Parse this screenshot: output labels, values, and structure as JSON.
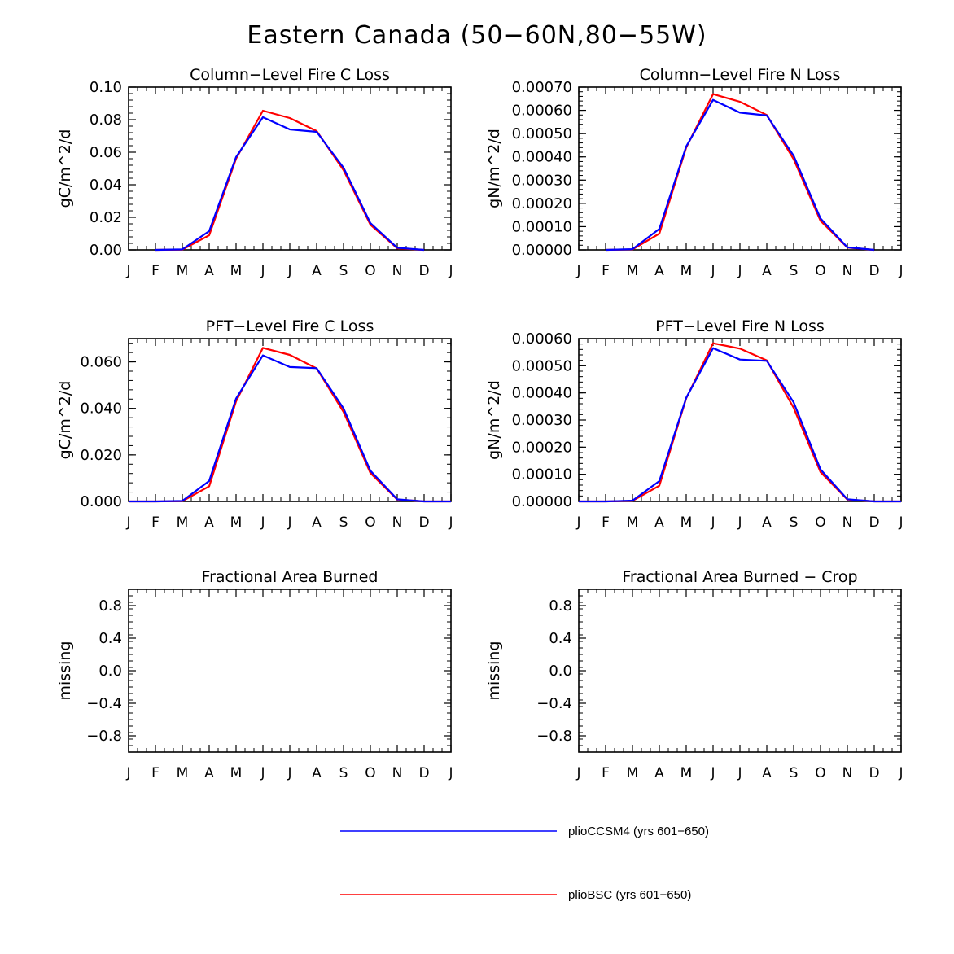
{
  "figure_title": "Eastern Canada (50−60N,80−55W)",
  "colors": {
    "series_1": "#0000ff",
    "series_2": "#ff0000",
    "axis": "#000000"
  },
  "legend": [
    {
      "label": "plioCCSM4 (yrs 601−650)",
      "color": "#0000ff"
    },
    {
      "label": "plioBSC (yrs 601−650)",
      "color": "#ff0000"
    }
  ],
  "chart_data": [
    {
      "type": "line",
      "title": "Column−Level Fire C Loss",
      "ylabel": "gC/m^2/d",
      "categories": [
        "J",
        "F",
        "M",
        "A",
        "M",
        "J",
        "J",
        "A",
        "S",
        "O",
        "N",
        "D",
        "J"
      ],
      "ylim": [
        0,
        0.1
      ],
      "yticks": [
        "0.00",
        "0.02",
        "0.04",
        "0.06",
        "0.08",
        "0.10"
      ],
      "series": [
        {
          "name": "plioBSC (yrs 601−650)",
          "color": "#ff0000",
          "values": [
            null,
            0.0,
            0.0002,
            0.009,
            0.056,
            0.0855,
            0.081,
            0.073,
            0.049,
            0.0155,
            0.001,
            0.0,
            null
          ]
        },
        {
          "name": "plioCCSM4 (yrs 601−650)",
          "color": "#0000ff",
          "values": [
            null,
            0.0,
            0.0003,
            0.0115,
            0.057,
            0.0815,
            0.074,
            0.0725,
            0.0505,
            0.0165,
            0.0013,
            0.0,
            null
          ]
        }
      ]
    },
    {
      "type": "line",
      "title": "Column−Level Fire N Loss",
      "ylabel": "gN/m^2/d",
      "categories": [
        "J",
        "F",
        "M",
        "A",
        "M",
        "J",
        "J",
        "A",
        "S",
        "O",
        "N",
        "D",
        "J"
      ],
      "ylim": [
        0,
        0.0007
      ],
      "yticks": [
        "0.00000",
        "0.00010",
        "0.00020",
        "0.00030",
        "0.00040",
        "0.00050",
        "0.00060",
        "0.00070"
      ],
      "series": [
        {
          "name": "plioBSC (yrs 601−650)",
          "color": "#ff0000",
          "values": [
            null,
            0.0,
            2e-06,
            7e-05,
            0.00044,
            0.00067,
            0.000637,
            0.00058,
            0.00039,
            0.000125,
            1e-05,
            0.0,
            null
          ]
        },
        {
          "name": "plioCCSM4 (yrs 601−650)",
          "color": "#0000ff",
          "values": [
            null,
            0.0,
            3e-06,
            9e-05,
            0.000445,
            0.000645,
            0.00059,
            0.000578,
            0.000405,
            0.000135,
            1.1e-05,
            0.0,
            null
          ]
        }
      ]
    },
    {
      "type": "line",
      "title": "PFT−Level Fire C Loss",
      "ylabel": "gC/m^2/d",
      "categories": [
        "J",
        "F",
        "M",
        "A",
        "M",
        "J",
        "J",
        "A",
        "S",
        "O",
        "N",
        "D",
        "J"
      ],
      "ylim": [
        0,
        0.07
      ],
      "yticks": [
        "0.000",
        "0.020",
        "0.040",
        "0.060"
      ],
      "ytick_values": [
        0,
        0.02,
        0.04,
        0.06
      ],
      "series": [
        {
          "name": "plioBSC (yrs 601−650)",
          "color": "#ff0000",
          "values": [
            0.0,
            0.0,
            0.0001,
            0.0065,
            0.043,
            0.066,
            0.063,
            0.0572,
            0.0385,
            0.0122,
            0.0008,
            0.0,
            0.0
          ]
        },
        {
          "name": "plioCCSM4 (yrs 601−650)",
          "color": "#0000ff",
          "values": [
            0.0,
            0.0,
            0.0002,
            0.0088,
            0.0442,
            0.0628,
            0.0578,
            0.0573,
            0.04,
            0.0132,
            0.0009,
            0.0,
            0.0
          ]
        }
      ]
    },
    {
      "type": "line",
      "title": "PFT−Level Fire N Loss",
      "ylabel": "gN/m^2/d",
      "categories": [
        "J",
        "F",
        "M",
        "A",
        "M",
        "J",
        "J",
        "A",
        "S",
        "O",
        "N",
        "D",
        "J"
      ],
      "ylim": [
        0,
        0.0006
      ],
      "yticks": [
        "0.00000",
        "0.00010",
        "0.00020",
        "0.00030",
        "0.00040",
        "0.00050",
        "0.00060"
      ],
      "series": [
        {
          "name": "plioBSC (yrs 601−650)",
          "color": "#ff0000",
          "values": [
            0.0,
            0.0,
            2e-06,
            5.8e-05,
            0.00038,
            0.000583,
            0.000563,
            0.00052,
            0.000345,
            0.000108,
            7e-06,
            0.0,
            0.0
          ]
        },
        {
          "name": "plioCCSM4 (yrs 601−650)",
          "color": "#0000ff",
          "values": [
            0.0,
            0.0,
            3e-06,
            7.5e-05,
            0.000382,
            0.000565,
            0.000523,
            0.000518,
            0.000365,
            0.000118,
            8e-06,
            0.0,
            0.0
          ]
        }
      ]
    },
    {
      "type": "line",
      "title": "Fractional Area Burned",
      "ylabel": "missing",
      "categories": [
        "J",
        "F",
        "M",
        "A",
        "M",
        "J",
        "J",
        "A",
        "S",
        "O",
        "N",
        "D",
        "J"
      ],
      "ylim": [
        -1,
        1
      ],
      "yticks": [
        "−0.8",
        "−0.4",
        "0.0",
        "0.4",
        "0.8"
      ],
      "ytick_values": [
        -0.8,
        -0.4,
        0.0,
        0.4,
        0.8
      ],
      "series": []
    },
    {
      "type": "line",
      "title": "Fractional Area Burned − Crop",
      "ylabel": "missing",
      "categories": [
        "J",
        "F",
        "M",
        "A",
        "M",
        "J",
        "J",
        "A",
        "S",
        "O",
        "N",
        "D",
        "J"
      ],
      "ylim": [
        -1,
        1
      ],
      "yticks": [
        "−0.8",
        "−0.4",
        "0.0",
        "0.4",
        "0.8"
      ],
      "ytick_values": [
        -0.8,
        -0.4,
        0.0,
        0.4,
        0.8
      ],
      "series": []
    }
  ]
}
